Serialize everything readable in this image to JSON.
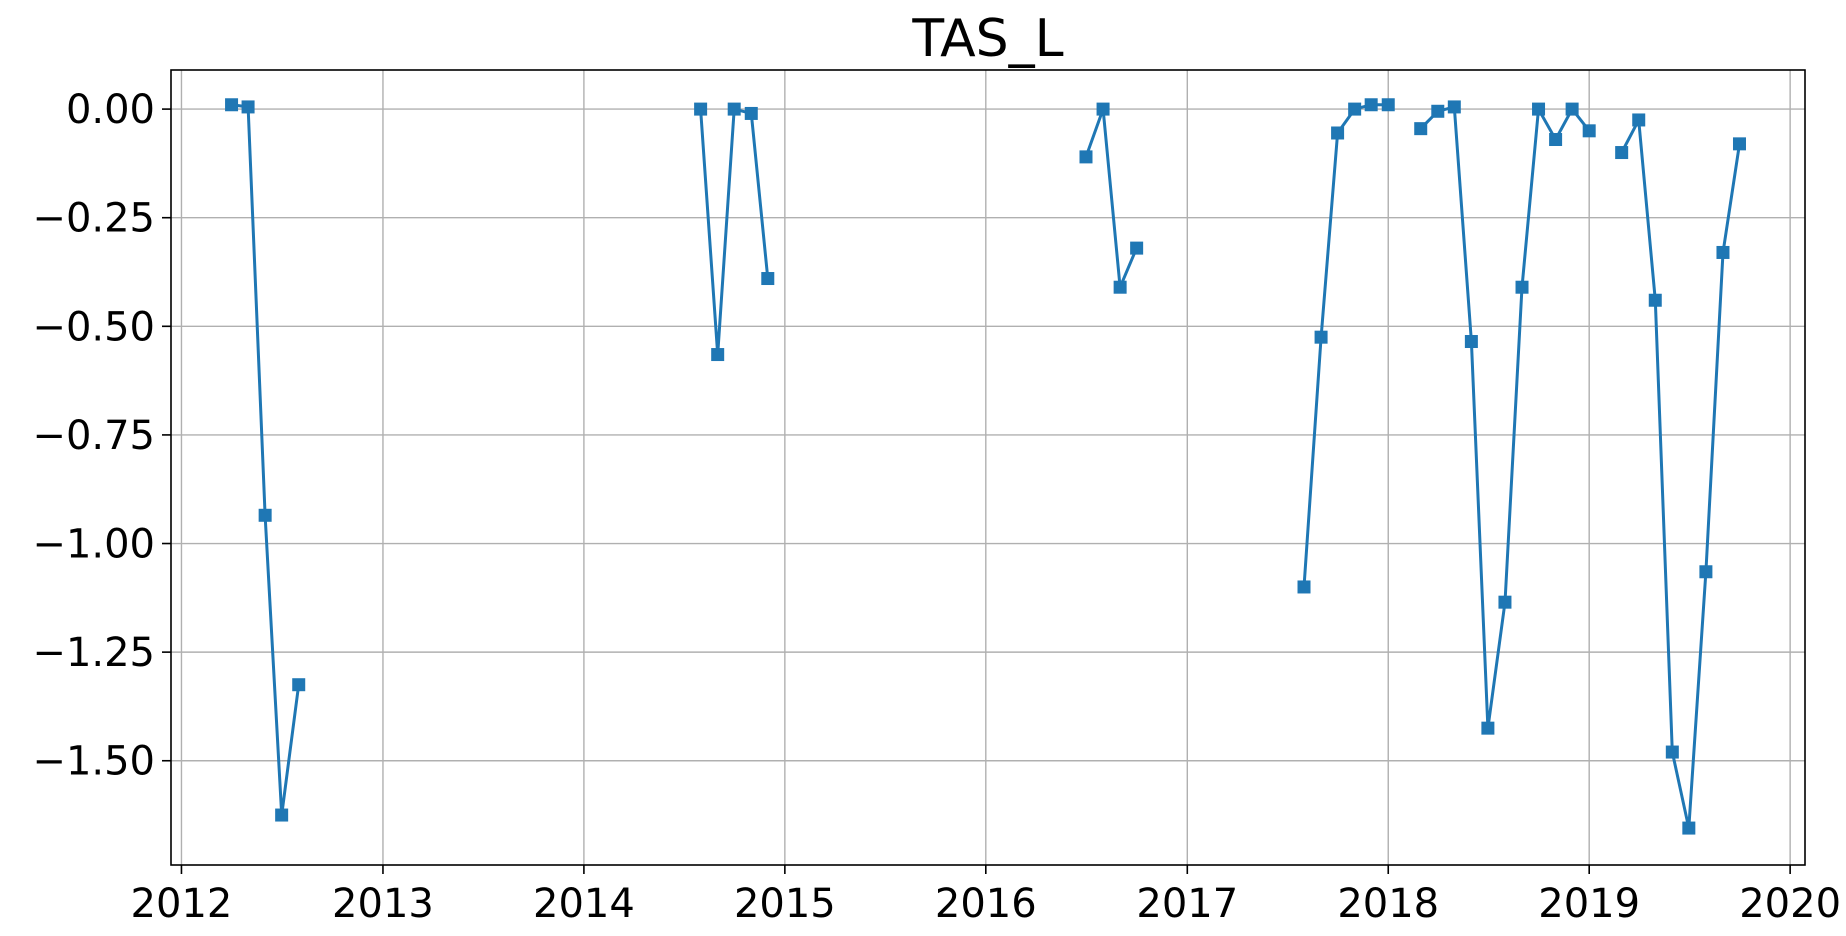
{
  "chart_data": {
    "type": "line",
    "title": "TAS_L",
    "xlabel": "",
    "ylabel": "",
    "x_axis_kind": "date",
    "xlim": [
      "2011-12-13",
      "2020-01-28"
    ],
    "ylim": [
      -1.74,
      0.09
    ],
    "x_ticks": [
      {
        "value": "2012-01-01",
        "label": "2012"
      },
      {
        "value": "2013-01-01",
        "label": "2013"
      },
      {
        "value": "2014-01-01",
        "label": "2014"
      },
      {
        "value": "2015-01-01",
        "label": "2015"
      },
      {
        "value": "2016-01-01",
        "label": "2016"
      },
      {
        "value": "2017-01-01",
        "label": "2017"
      },
      {
        "value": "2018-01-01",
        "label": "2018"
      },
      {
        "value": "2019-01-01",
        "label": "2019"
      },
      {
        "value": "2020-01-01",
        "label": "2020"
      }
    ],
    "y_ticks": [
      {
        "value": 0.0,
        "label": "0.00"
      },
      {
        "value": -0.25,
        "label": "−0.25"
      },
      {
        "value": -0.5,
        "label": "−0.50"
      },
      {
        "value": -0.75,
        "label": "−0.75"
      },
      {
        "value": -1.0,
        "label": "−1.00"
      },
      {
        "value": -1.25,
        "label": "−1.25"
      },
      {
        "value": -1.5,
        "label": "−1.50"
      }
    ],
    "grid": true,
    "marker": "square",
    "color": "#1f77b4",
    "segments": [
      [
        {
          "x": "2012-04-01",
          "y": 0.01
        },
        {
          "x": "2012-05-01",
          "y": 0.005
        },
        {
          "x": "2012-06-01",
          "y": -0.935
        },
        {
          "x": "2012-07-01",
          "y": -1.625
        },
        {
          "x": "2012-08-01",
          "y": -1.325
        }
      ],
      [
        {
          "x": "2014-08-01",
          "y": 0.0
        },
        {
          "x": "2014-09-01",
          "y": -0.565
        },
        {
          "x": "2014-10-01",
          "y": 0.0
        },
        {
          "x": "2014-11-01",
          "y": -0.01
        },
        {
          "x": "2014-12-01",
          "y": -0.39
        }
      ],
      [
        {
          "x": "2016-07-01",
          "y": -0.11
        },
        {
          "x": "2016-08-01",
          "y": 0.0
        },
        {
          "x": "2016-09-01",
          "y": -0.41
        },
        {
          "x": "2016-10-01",
          "y": -0.32
        }
      ],
      [
        {
          "x": "2017-08-01",
          "y": -1.1
        },
        {
          "x": "2017-09-01",
          "y": -0.525
        },
        {
          "x": "2017-10-01",
          "y": -0.055
        },
        {
          "x": "2017-11-01",
          "y": 0.0
        },
        {
          "x": "2017-12-01",
          "y": 0.01
        },
        {
          "x": "2018-01-01",
          "y": 0.01
        }
      ],
      [
        {
          "x": "2018-03-01",
          "y": -0.045
        },
        {
          "x": "2018-04-01",
          "y": -0.005
        },
        {
          "x": "2018-05-01",
          "y": 0.005
        },
        {
          "x": "2018-06-01",
          "y": -0.535
        },
        {
          "x": "2018-07-01",
          "y": -1.425
        },
        {
          "x": "2018-08-01",
          "y": -1.135
        },
        {
          "x": "2018-09-01",
          "y": -0.41
        },
        {
          "x": "2018-10-01",
          "y": 0.0
        },
        {
          "x": "2018-11-01",
          "y": -0.07
        },
        {
          "x": "2018-12-01",
          "y": 0.0
        },
        {
          "x": "2019-01-01",
          "y": -0.05
        }
      ],
      [
        {
          "x": "2019-03-01",
          "y": -0.1
        },
        {
          "x": "2019-04-01",
          "y": -0.025
        },
        {
          "x": "2019-05-01",
          "y": -0.44
        },
        {
          "x": "2019-06-01",
          "y": -1.48
        },
        {
          "x": "2019-07-01",
          "y": -1.655
        },
        {
          "x": "2019-08-01",
          "y": -1.065
        },
        {
          "x": "2019-09-01",
          "y": -0.33
        },
        {
          "x": "2019-10-01",
          "y": -0.08
        }
      ]
    ]
  }
}
